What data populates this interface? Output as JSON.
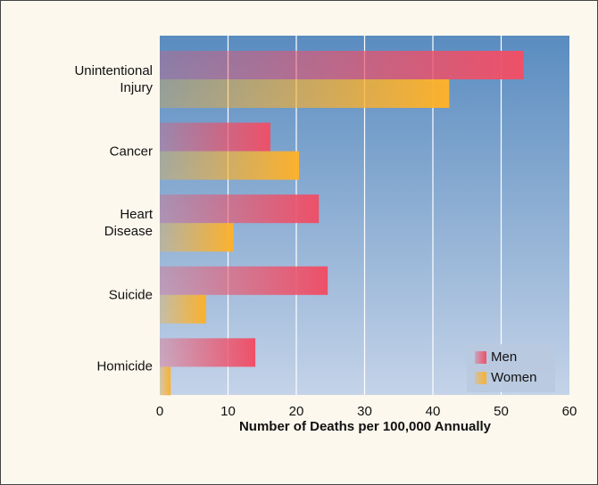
{
  "chart_data": {
    "type": "hbar",
    "categories": [
      "Unintentional\nInjury",
      "Cancer",
      "Heart\nDisease",
      "Suicide",
      "Homicide"
    ],
    "series": [
      {
        "name": "Men",
        "color": "#ee5068",
        "values": [
          53.3,
          16.2,
          23.3,
          24.6,
          14.0
        ]
      },
      {
        "name": "Women",
        "color": "#fbb12d",
        "values": [
          42.4,
          20.4,
          10.8,
          6.8,
          1.6
        ]
      }
    ],
    "xlim": [
      0,
      60
    ],
    "xticks": [
      0,
      10,
      20,
      30,
      40,
      50,
      60
    ],
    "xlabel": "Number of Deaths per 100,000 Annually",
    "grid": true,
    "legend": "lower right"
  }
}
